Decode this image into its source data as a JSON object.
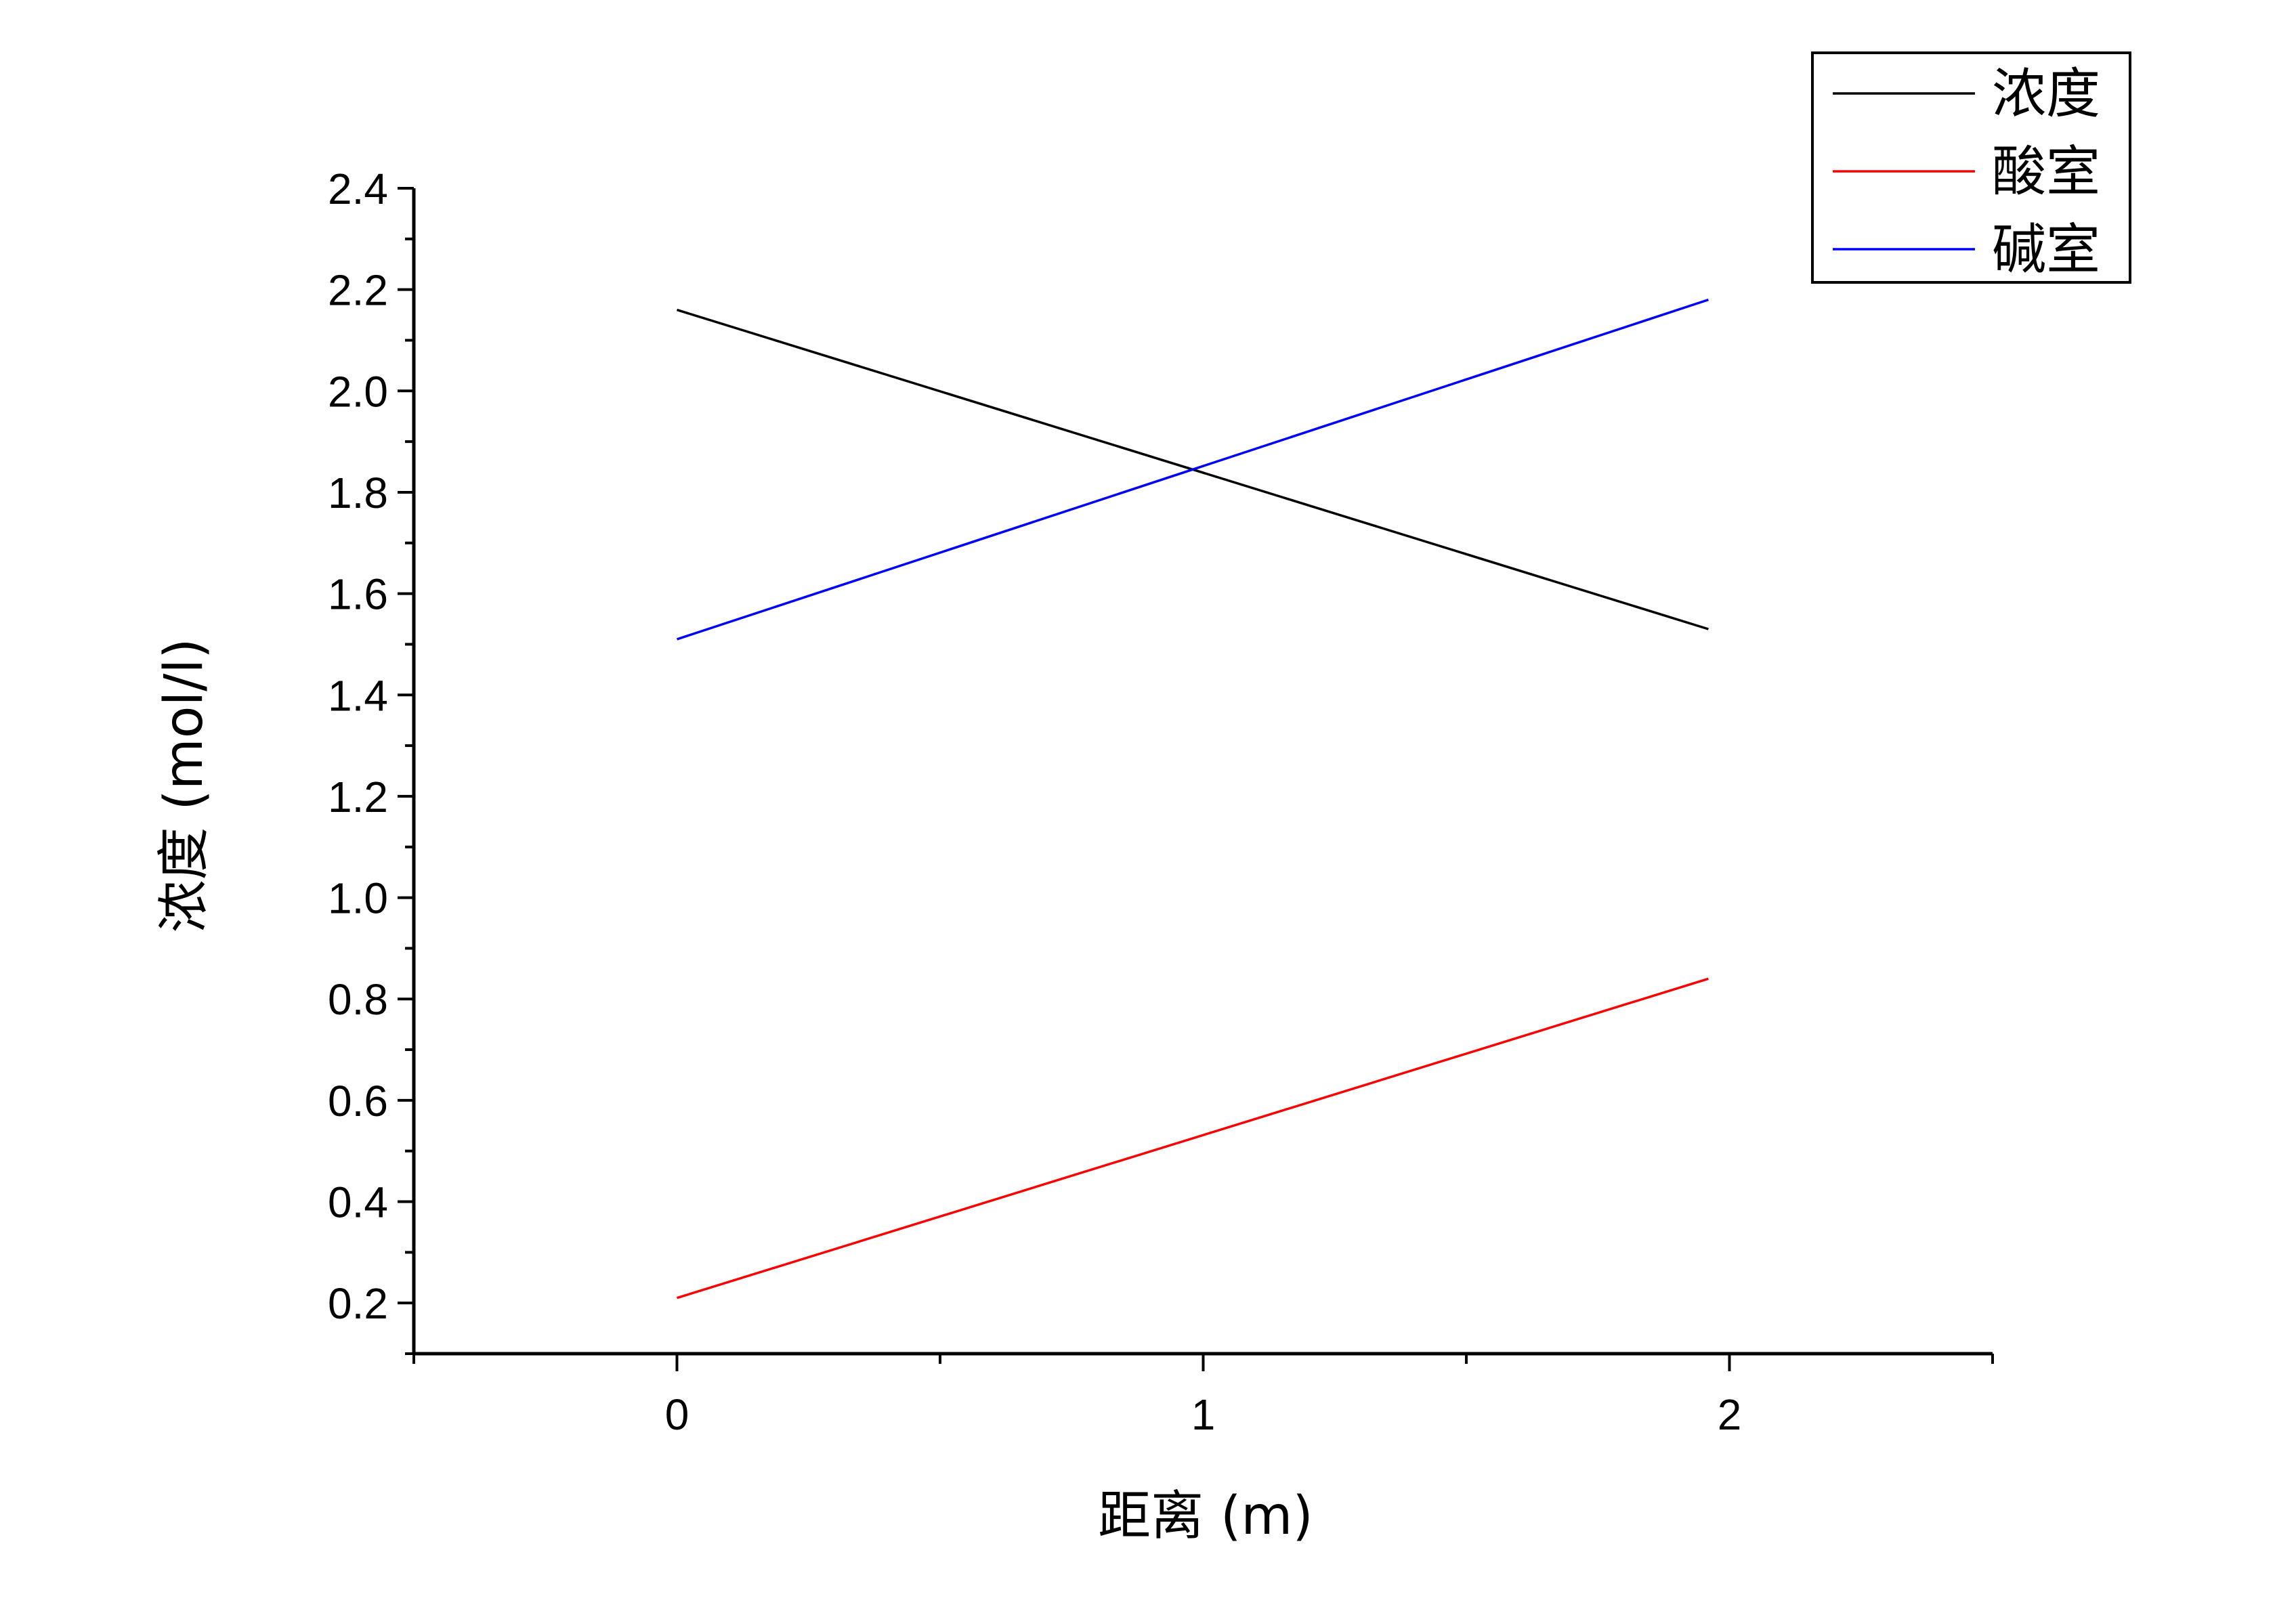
{
  "chart_data": {
    "type": "line",
    "xlabel": "距离 (m)",
    "ylabel": "浓度 (mol/l)",
    "xlim": [
      -0.5,
      2.5
    ],
    "ylim": [
      0.1,
      2.4
    ],
    "x_ticks": [
      "0",
      "1",
      "2"
    ],
    "y_ticks": [
      "0.2",
      "0.4",
      "0.6",
      "0.8",
      "1.0",
      "1.2",
      "1.4",
      "1.6",
      "1.8",
      "2.0",
      "2.2",
      "2.4"
    ],
    "grid": false,
    "legend_position": "top-right",
    "series": [
      {
        "name": "浓度",
        "color": "#000000",
        "x": [
          0,
          1.96
        ],
        "y": [
          2.16,
          1.53
        ]
      },
      {
        "name": "酸室",
        "color": "#ff0000",
        "x": [
          0,
          1.96
        ],
        "y": [
          0.21,
          0.84
        ]
      },
      {
        "name": "碱室",
        "color": "#0000ff",
        "x": [
          0,
          1.96
        ],
        "y": [
          1.51,
          2.18
        ]
      }
    ]
  }
}
